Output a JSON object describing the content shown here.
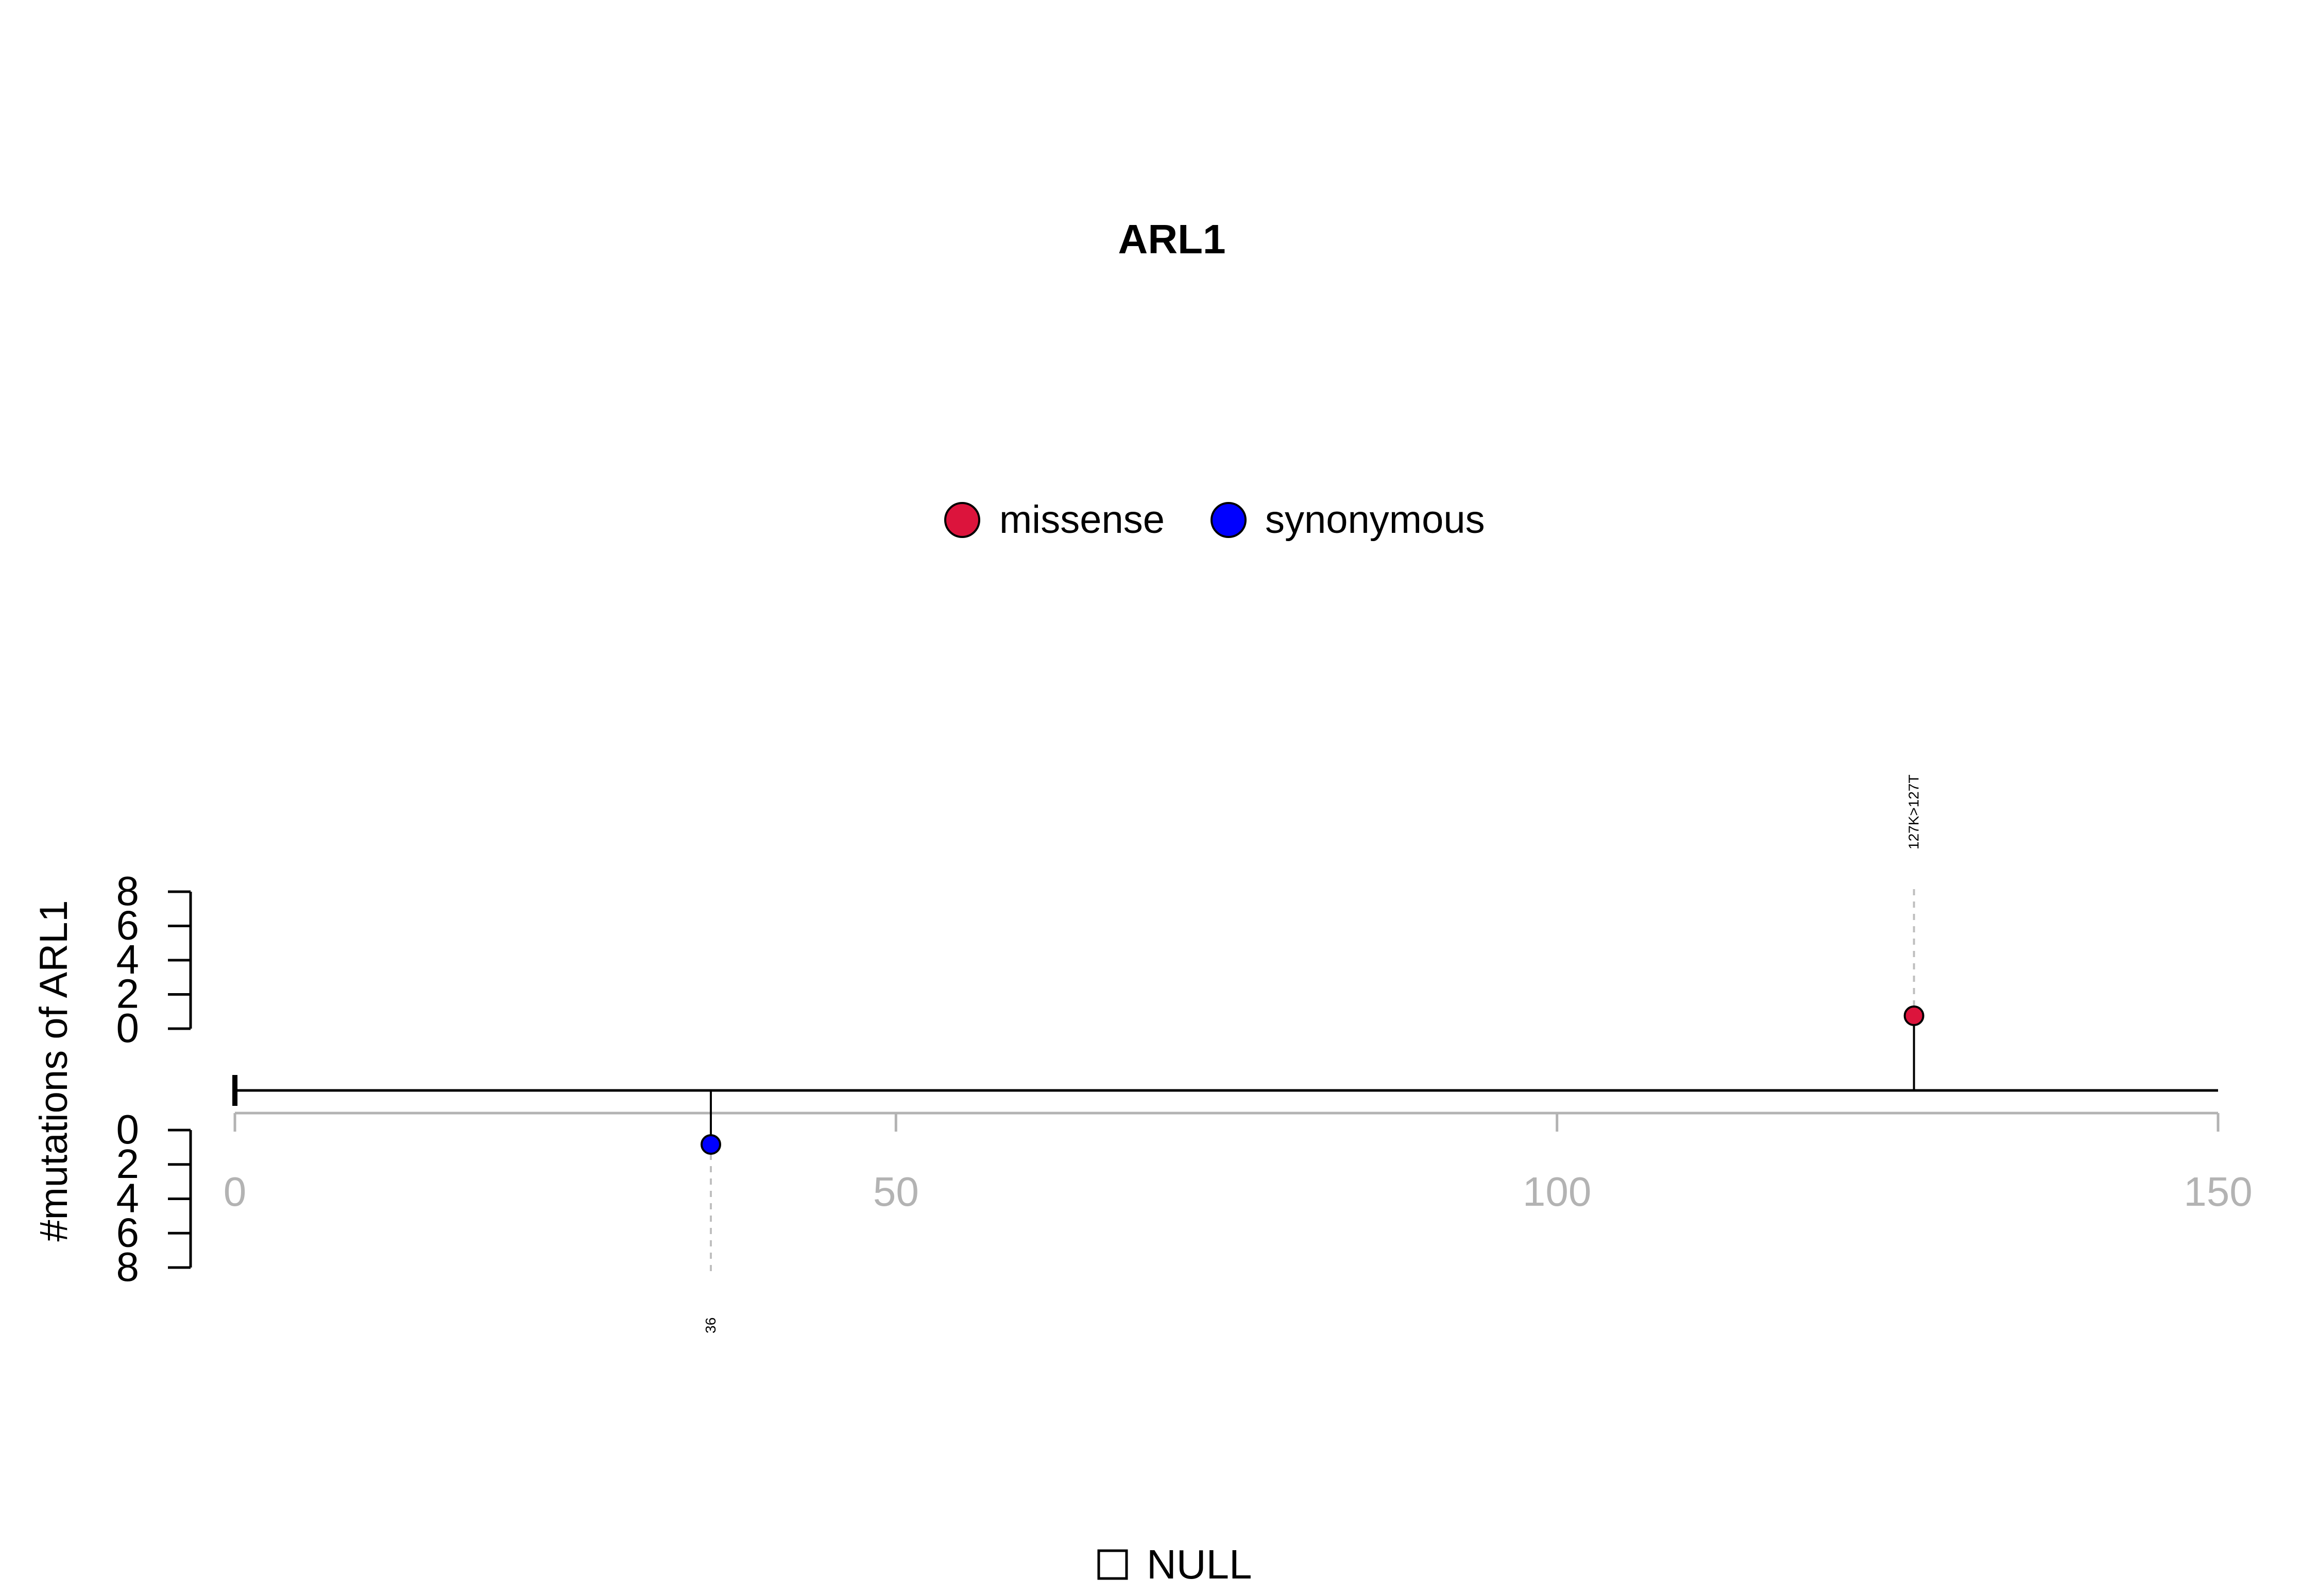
{
  "chart_data": {
    "type": "lollipop",
    "title": "ARL1",
    "ylabel": "#mutations of ARL1",
    "xlim": [
      0,
      150
    ],
    "x_ticks": [
      "0",
      "50",
      "100",
      "150"
    ],
    "x_tick_values": [
      0,
      50,
      100,
      150
    ],
    "y_ticks": [
      "0",
      "2",
      "4",
      "6",
      "8"
    ],
    "y_tick_values": [
      0,
      2,
      4,
      6,
      8
    ],
    "ylim": [
      0,
      8
    ],
    "legend": [
      {
        "name": "missense",
        "color": "#DC143C"
      },
      {
        "name": "synonymous",
        "color": "#0000FF"
      }
    ],
    "mutations": [
      {
        "position": 127,
        "count": 1,
        "type": "missense",
        "label": "127K>127T",
        "side": "top"
      },
      {
        "position": 36,
        "count": 1,
        "type": "synonymous",
        "label": "36",
        "side": "bottom"
      }
    ],
    "domain_legend": {
      "label": "NULL"
    }
  }
}
